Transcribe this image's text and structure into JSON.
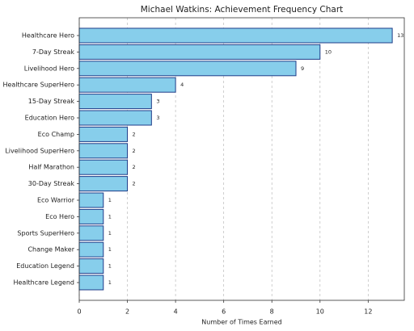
{
  "chart_data": {
    "type": "bar",
    "orientation": "horizontal",
    "title": "Michael Watkins: Achievement Frequency Chart",
    "x_label": "Number of Times Earned",
    "categories": [
      "Healthcare Hero",
      "7-Day Streak",
      "Livelihood Hero",
      "Healthcare SuperHero",
      "15-Day Streak",
      "Education Hero",
      "Eco Champ",
      "Livelihood SuperHero",
      "Half Marathon",
      "30-Day Streak",
      "Eco Warrior",
      "Eco Hero",
      "Sports SuperHero",
      "Change Maker",
      "Education Legend",
      "Healthcare Legend"
    ],
    "values": [
      13,
      10,
      9,
      4,
      3,
      3,
      2,
      2,
      2,
      2,
      1,
      1,
      1,
      1,
      1,
      1
    ],
    "color": "#87ceeb",
    "edge_color": "#1f3c88",
    "xlim": [
      0,
      13.5
    ],
    "xticks": [
      0,
      2,
      4,
      6,
      8,
      10,
      12
    ],
    "grid": true
  }
}
